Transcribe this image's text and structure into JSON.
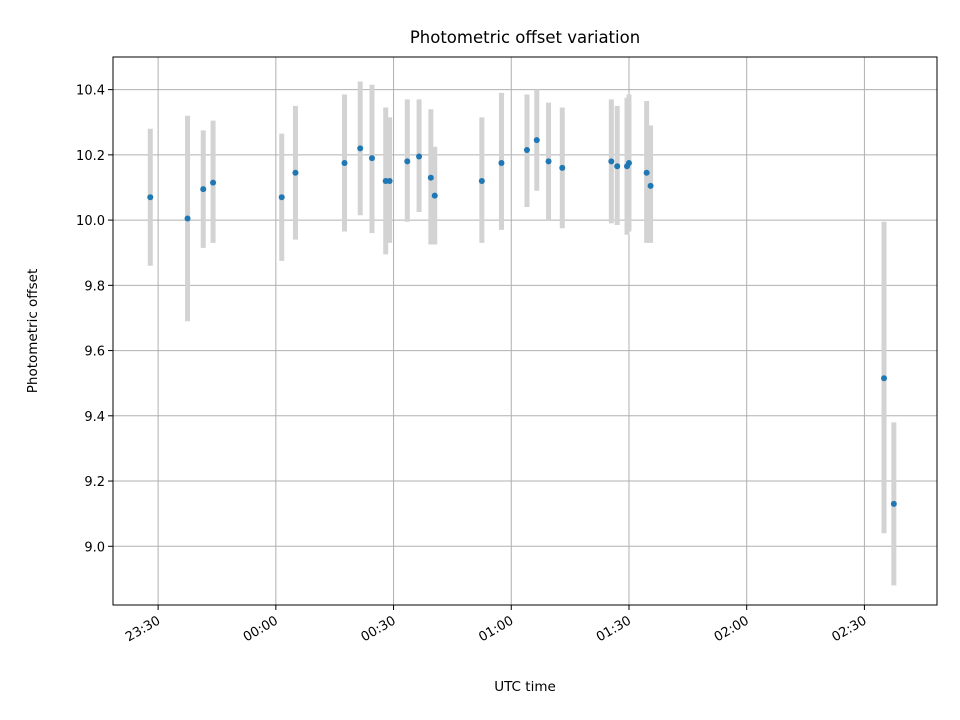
{
  "chart_data": {
    "type": "scatter",
    "title": "Photometric offset variation",
    "xlabel": "UTC time",
    "ylabel": "Photometric offset",
    "x_ticks": [
      "23:30",
      "00:00",
      "00:30",
      "01:00",
      "01:30",
      "02:00",
      "02:30"
    ],
    "x_tick_minutes": [
      -30,
      0,
      30,
      60,
      90,
      120,
      150
    ],
    "x_range_minutes": [
      -41.5,
      168.5
    ],
    "y_ticks": [
      "9.0",
      "9.2",
      "9.4",
      "9.6",
      "9.8",
      "10.0",
      "10.2",
      "10.4"
    ],
    "y_tick_values": [
      9.0,
      9.2,
      9.4,
      9.6,
      9.8,
      10.0,
      10.2,
      10.4
    ],
    "ylim": [
      8.82,
      10.5
    ],
    "grid": true,
    "x_tick_rotation": "rotated 30°",
    "colors": {
      "point": "#1f77b4",
      "errorbar": "#d3d3d3",
      "grid": "#b0b0b0",
      "axes": "#000000"
    },
    "series": [
      {
        "points": [
          {
            "time": "23:28",
            "x": -32.0,
            "y": 10.07,
            "low": 9.86,
            "high": 10.28
          },
          {
            "time": "23:37",
            "x": -22.5,
            "y": 10.005,
            "low": 9.69,
            "high": 10.32
          },
          {
            "time": "23:41",
            "x": -18.5,
            "y": 10.095,
            "low": 9.915,
            "high": 10.275
          },
          {
            "time": "23:44",
            "x": -16.0,
            "y": 10.115,
            "low": 9.93,
            "high": 10.305
          },
          {
            "time": "00:01",
            "x": 1.5,
            "y": 10.07,
            "low": 9.875,
            "high": 10.265
          },
          {
            "time": "00:05",
            "x": 5.0,
            "y": 10.145,
            "low": 9.94,
            "high": 10.35
          },
          {
            "time": "00:17",
            "x": 17.5,
            "y": 10.175,
            "low": 9.965,
            "high": 10.385
          },
          {
            "time": "00:21",
            "x": 21.5,
            "y": 10.22,
            "low": 10.015,
            "high": 10.425
          },
          {
            "time": "00:24",
            "x": 24.5,
            "y": 10.19,
            "low": 9.96,
            "high": 10.415
          },
          {
            "time": "00:28",
            "x": 28.0,
            "y": 10.12,
            "low": 9.895,
            "high": 10.345
          },
          {
            "time": "00:29",
            "x": 29.0,
            "y": 10.12,
            "low": 9.93,
            "high": 10.315
          },
          {
            "time": "00:33",
            "x": 33.5,
            "y": 10.18,
            "low": 9.995,
            "high": 10.37
          },
          {
            "time": "00:36",
            "x": 36.5,
            "y": 10.195,
            "low": 10.025,
            "high": 10.37
          },
          {
            "time": "00:39",
            "x": 39.5,
            "y": 10.13,
            "low": 9.925,
            "high": 10.34
          },
          {
            "time": "00:40",
            "x": 40.5,
            "y": 10.075,
            "low": 9.925,
            "high": 10.225
          },
          {
            "time": "00:52",
            "x": 52.5,
            "y": 10.12,
            "low": 9.93,
            "high": 10.315
          },
          {
            "time": "00:57",
            "x": 57.5,
            "y": 10.175,
            "low": 9.97,
            "high": 10.39
          },
          {
            "time": "01:04",
            "x": 64.0,
            "y": 10.215,
            "low": 10.04,
            "high": 10.385
          },
          {
            "time": "01:06",
            "x": 66.5,
            "y": 10.245,
            "low": 10.09,
            "high": 10.4
          },
          {
            "time": "01:09",
            "x": 69.5,
            "y": 10.18,
            "low": 10.0,
            "high": 10.36
          },
          {
            "time": "01:13",
            "x": 73.0,
            "y": 10.16,
            "low": 9.975,
            "high": 10.345
          },
          {
            "time": "01:25",
            "x": 85.5,
            "y": 10.18,
            "low": 9.99,
            "high": 10.37
          },
          {
            "time": "01:27",
            "x": 87.0,
            "y": 10.165,
            "low": 9.985,
            "high": 10.35
          },
          {
            "time": "01:29",
            "x": 89.5,
            "y": 10.165,
            "low": 9.955,
            "high": 10.375
          },
          {
            "time": "01:30",
            "x": 90.0,
            "y": 10.175,
            "low": 9.965,
            "high": 10.385
          },
          {
            "time": "01:34",
            "x": 94.5,
            "y": 10.145,
            "low": 9.93,
            "high": 10.365
          },
          {
            "time": "01:35",
            "x": 95.5,
            "y": 10.105,
            "low": 9.93,
            "high": 10.29
          },
          {
            "time": "02:35",
            "x": 155.0,
            "y": 9.515,
            "low": 9.04,
            "high": 9.995
          },
          {
            "time": "02:37",
            "x": 157.5,
            "y": 9.13,
            "low": 8.88,
            "high": 9.38
          }
        ]
      }
    ]
  }
}
